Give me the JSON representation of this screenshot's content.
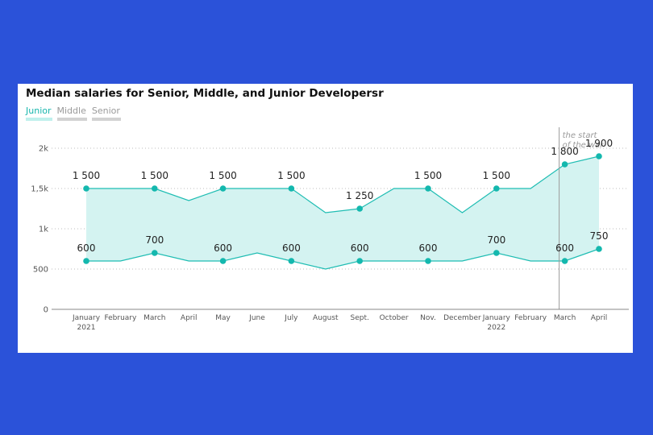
{
  "chart_data": {
    "type": "line",
    "title": "Median salaries for Senior, Middle, and Junior Developersr",
    "legend": [
      {
        "name": "Junior",
        "active": true
      },
      {
        "name": "Middle",
        "active": false
      },
      {
        "name": "Senior",
        "active": false
      }
    ],
    "x": [
      "January|2021",
      "February",
      "March",
      "April",
      "May",
      "June",
      "July",
      "August",
      "Sept.",
      "October",
      "Nov.",
      "December",
      "January|2022",
      "February",
      "March",
      "April"
    ],
    "series": [
      {
        "role": "upper",
        "values": [
          1500,
          1500,
          1500,
          1350,
          1500,
          1500,
          1500,
          1200,
          1250,
          1500,
          1500,
          1200,
          1500,
          1500,
          1800,
          1900
        ],
        "labels": [
          "1 500",
          "",
          "1 500",
          "",
          "1 500",
          "",
          "1 500",
          "",
          "1 250",
          "",
          "1 500",
          "",
          "1 500",
          "",
          "1 800",
          "1 900"
        ]
      },
      {
        "role": "lower",
        "values": [
          600,
          600,
          700,
          600,
          600,
          700,
          600,
          500,
          600,
          600,
          600,
          600,
          700,
          600,
          600,
          750
        ],
        "labels": [
          "600",
          "",
          "700",
          "",
          "600",
          "",
          "600",
          "",
          "600",
          "",
          "600",
          "",
          "700",
          "",
          "600",
          "750"
        ]
      }
    ],
    "markers": [
      0,
      2,
      4,
      6,
      8,
      10,
      12,
      14,
      15
    ],
    "yticks": [
      {
        "value": 0,
        "label": "0"
      },
      {
        "value": 500,
        "label": "500"
      },
      {
        "value": 1000,
        "label": "1k"
      },
      {
        "value": 1500,
        "label": "1,5k"
      },
      {
        "value": 2000,
        "label": "2k"
      }
    ],
    "ylim": [
      0,
      2000
    ],
    "annotation": {
      "x_index": 14,
      "text": [
        "the start",
        "of the war"
      ]
    },
    "colors": {
      "line": "#1fbdb3",
      "fill": "#d4f3f1",
      "marker": "#14b8ae",
      "grid": "#bdbdbd",
      "axis": "#888888",
      "vline": "#9a9a9a"
    }
  }
}
